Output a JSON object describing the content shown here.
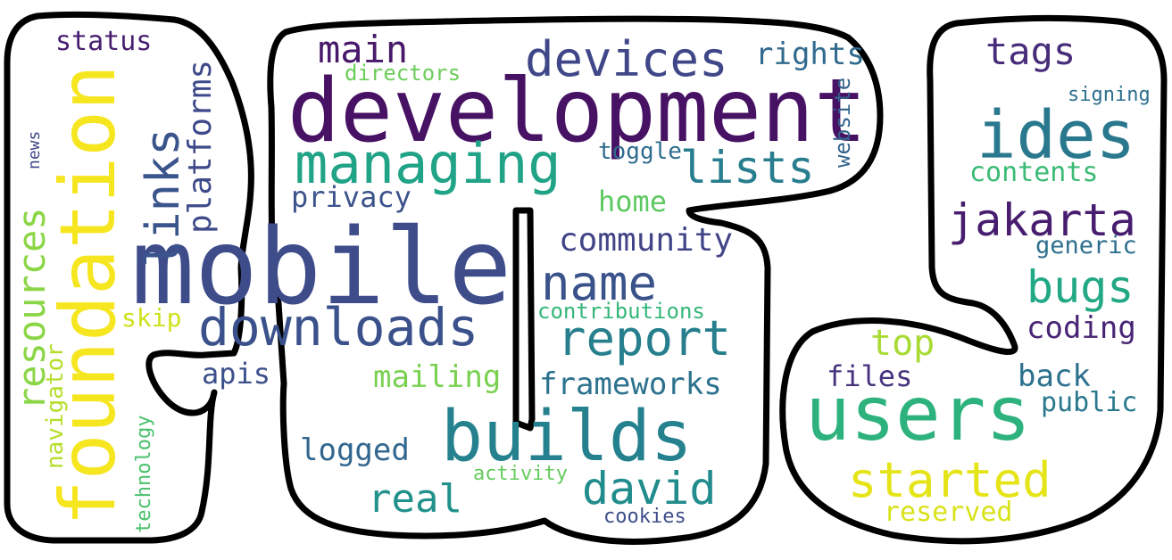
{
  "words": [
    {
      "text": "development",
      "color": "#471164"
    },
    {
      "text": "mobile",
      "color": "#3e4c8a"
    },
    {
      "text": "foundation",
      "color": "#f6e620"
    },
    {
      "text": "users",
      "color": "#2db27d"
    },
    {
      "text": "builds",
      "color": "#26818e"
    },
    {
      "text": "managing",
      "color": "#20a386"
    },
    {
      "text": "downloads",
      "color": "#3b518b"
    },
    {
      "text": "ides",
      "color": "#2a788e"
    },
    {
      "text": "devices",
      "color": "#3f4788"
    },
    {
      "text": "report",
      "color": "#277f8e"
    },
    {
      "text": "links",
      "color": "#3a548c"
    },
    {
      "text": "jakarta",
      "color": "#481d6f"
    },
    {
      "text": "started",
      "color": "#e5e419"
    },
    {
      "text": "lists",
      "color": "#287d8e"
    },
    {
      "text": "name",
      "color": "#3a538b"
    },
    {
      "text": "david",
      "color": "#228c8d"
    },
    {
      "text": "resources",
      "color": "#8bd646"
    },
    {
      "text": "bugs",
      "color": "#22a884"
    },
    {
      "text": "main",
      "color": "#48186a"
    },
    {
      "text": "real",
      "color": "#21918c"
    },
    {
      "text": "tags",
      "color": "#472c7a"
    },
    {
      "text": "platforms",
      "color": "#3e4a89"
    },
    {
      "text": "community",
      "color": "#414487"
    },
    {
      "text": "frameworks",
      "color": "#2c728e"
    },
    {
      "text": "top",
      "color": "#a8db34"
    },
    {
      "text": "coding",
      "color": "#482475"
    },
    {
      "text": "logged",
      "color": "#31668e"
    },
    {
      "text": "privacy",
      "color": "#3b528b"
    },
    {
      "text": "status",
      "color": "#481f70"
    },
    {
      "text": "files",
      "color": "#46327e"
    },
    {
      "text": "back",
      "color": "#2c718e"
    },
    {
      "text": "rights",
      "color": "#306a8e"
    },
    {
      "text": "mailing",
      "color": "#7ad151"
    },
    {
      "text": "apis",
      "color": "#3c508b"
    },
    {
      "text": "navigator",
      "color": "#b5de2b"
    },
    {
      "text": "contents",
      "color": "#3bbb75"
    },
    {
      "text": "public",
      "color": "#2a788e"
    },
    {
      "text": "reserved",
      "color": "#d8e219"
    },
    {
      "text": "generic",
      "color": "#2e6f8e"
    },
    {
      "text": "home",
      "color": "#5ec962"
    },
    {
      "text": "contributions",
      "color": "#35b779"
    },
    {
      "text": "toggle",
      "color": "#2f6b8e"
    },
    {
      "text": "directors",
      "color": "#6ccd5a"
    },
    {
      "text": "skip",
      "color": "#d0e11c"
    },
    {
      "text": "website",
      "color": "#33638d"
    },
    {
      "text": "cookies",
      "color": "#3d4e8a"
    },
    {
      "text": "activity",
      "color": "#65cb5e"
    },
    {
      "text": "technology",
      "color": "#4ac16d"
    },
    {
      "text": "signing",
      "color": "#2d708e"
    },
    {
      "text": "news",
      "color": "#404588"
    }
  ]
}
